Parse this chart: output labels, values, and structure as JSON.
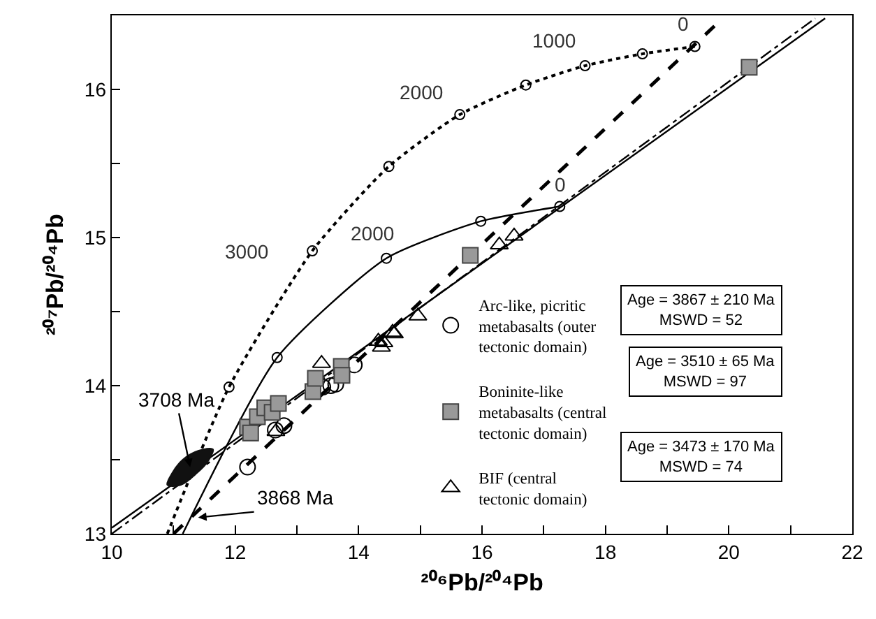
{
  "chart_data": {
    "type": "scatter",
    "xlabel": "²⁰⁶Pb/²⁰⁴Pb",
    "ylabel": "²⁰⁷Pb/²⁰⁴Pb",
    "xlim": [
      10,
      22
    ],
    "xticks": [
      10,
      {
        "value": 11,
        "label": null
      },
      12,
      {
        "value": 13,
        "label": null
      },
      14,
      {
        "value": 15,
        "label": null
      },
      16,
      {
        "value": 17,
        "label": null
      },
      18,
      {
        "value": 19,
        "label": null
      },
      20,
      {
        "value": 21,
        "label": null
      },
      22
    ],
    "ylim": [
      13,
      16.5
    ],
    "yticks": [
      13,
      {
        "value": 13.5,
        "label": null
      },
      14,
      {
        "value": 14.5,
        "label": null
      },
      15,
      {
        "value": 15.5,
        "label": null
      },
      16
    ],
    "grid": false,
    "legend": "bottom right",
    "series": [
      {
        "type": "line",
        "color": "#000000",
        "line_style": "dotted",
        "marker": "none",
        "x": [
          10.9,
          11.9,
          13.25,
          14.49,
          15.64,
          16.71,
          17.67,
          18.6,
          19.45
        ],
        "values": [
          13.0,
          13.99,
          14.91,
          15.48,
          15.83,
          16.03,
          16.16,
          16.24,
          16.29
        ]
      },
      {
        "color": "#000000",
        "marker": "circle",
        "x": [
          19.45,
          18.6,
          17.67,
          16.71,
          15.64,
          14.49,
          13.25,
          11.9
        ],
        "values": [
          16.29,
          16.24,
          16.16,
          16.03,
          15.83,
          15.48,
          14.91,
          13.99
        ]
      },
      {
        "type": "line",
        "color": "#000000",
        "line_style": "solid",
        "marker": "none",
        "x": [
          11.15,
          12.68,
          14.45,
          15.98,
          17.26
        ],
        "values": [
          13.0,
          14.19,
          14.86,
          15.11,
          15.21
        ]
      },
      {
        "color": "#000000",
        "marker": "circle",
        "x": [
          17.26,
          15.98,
          14.45,
          12.68
        ],
        "values": [
          15.21,
          15.11,
          14.86,
          14.19
        ]
      },
      {
        "type": "line",
        "color": "#000000",
        "line_style": "solid",
        "marker": "none",
        "x": [
          10,
          21.56
        ],
        "values": [
          13.04,
          16.48
        ]
      },
      {
        "type": "line",
        "color": "#000000",
        "line_style": "dashdot",
        "marker": "none",
        "x": [
          10,
          21.4
        ],
        "values": [
          13.0,
          16.48
        ]
      },
      {
        "type": "line",
        "color": "#000000",
        "line_style": "dashed",
        "marker": "none",
        "x": [
          11.0,
          19.9
        ],
        "values": [
          13.0,
          16.48
        ]
      },
      {
        "type": "area",
        "color": "#111111",
        "x": [
          10.9,
          10.98,
          11.15,
          11.4,
          11.64,
          11.56,
          11.38,
          11.12,
          10.9
        ],
        "values": [
          13.33,
          13.41,
          13.5,
          13.56,
          13.57,
          13.49,
          13.41,
          13.33,
          13.33
        ]
      },
      {
        "name": "Arc-like, picritic metabasalts (outer tectonic domain)",
        "color": "#000000",
        "marker": "circle",
        "x": [
          12.2,
          12.65,
          12.79,
          13.42,
          13.55,
          13.63,
          13.93
        ],
        "values": [
          13.45,
          13.7,
          13.73,
          13.99,
          14.0,
          14.01,
          14.14
        ]
      },
      {
        "name": "Boninite-like metabasalts (central tectonic domain)",
        "color": "#999999",
        "marker": "square",
        "x": [
          12.2,
          12.25,
          12.36,
          12.48,
          12.6,
          12.7,
          13.26,
          13.3,
          13.72,
          13.73,
          15.81,
          20.33
        ],
        "values": [
          13.72,
          13.68,
          13.79,
          13.85,
          13.82,
          13.88,
          13.96,
          14.05,
          14.13,
          14.07,
          14.88,
          16.15
        ]
      },
      {
        "name": "BIF (central tectonic domain)",
        "color": "#000000",
        "marker": "triangle",
        "x": [
          12.66,
          13.4,
          14.32,
          14.37,
          14.41,
          14.55,
          14.58,
          14.96,
          16.28,
          16.52
        ],
        "values": [
          13.69,
          14.15,
          14.3,
          14.26,
          14.29,
          14.36,
          14.35,
          14.47,
          14.95,
          15.01
        ]
      }
    ],
    "annotations": [
      {
        "text": "3708 Ma",
        "x": 11.27,
        "y": 13.45
      },
      {
        "text": "3868 Ma",
        "x": 11.4,
        "y": 13.11
      },
      {
        "text": "0",
        "x": 19.45,
        "y": 16.29
      },
      {
        "text": "1000",
        "x": 17.67,
        "y": 16.16
      },
      {
        "text": "2000",
        "x": 15.64,
        "y": 15.83
      },
      {
        "text": "3000",
        "x": 13.25,
        "y": 14.91
      },
      {
        "text": "0",
        "x": 17.26,
        "y": 15.21
      },
      {
        "text": "2000",
        "x": 14.45,
        "y": 14.86
      },
      "Age = 3867 ± 210 Ma\nMSWD = 52",
      "Age = 3510 ± 65 Ma\nMSWD = 97",
      "Age = 3473 ± 170 Ma\nMSWD = 74"
    ]
  }
}
